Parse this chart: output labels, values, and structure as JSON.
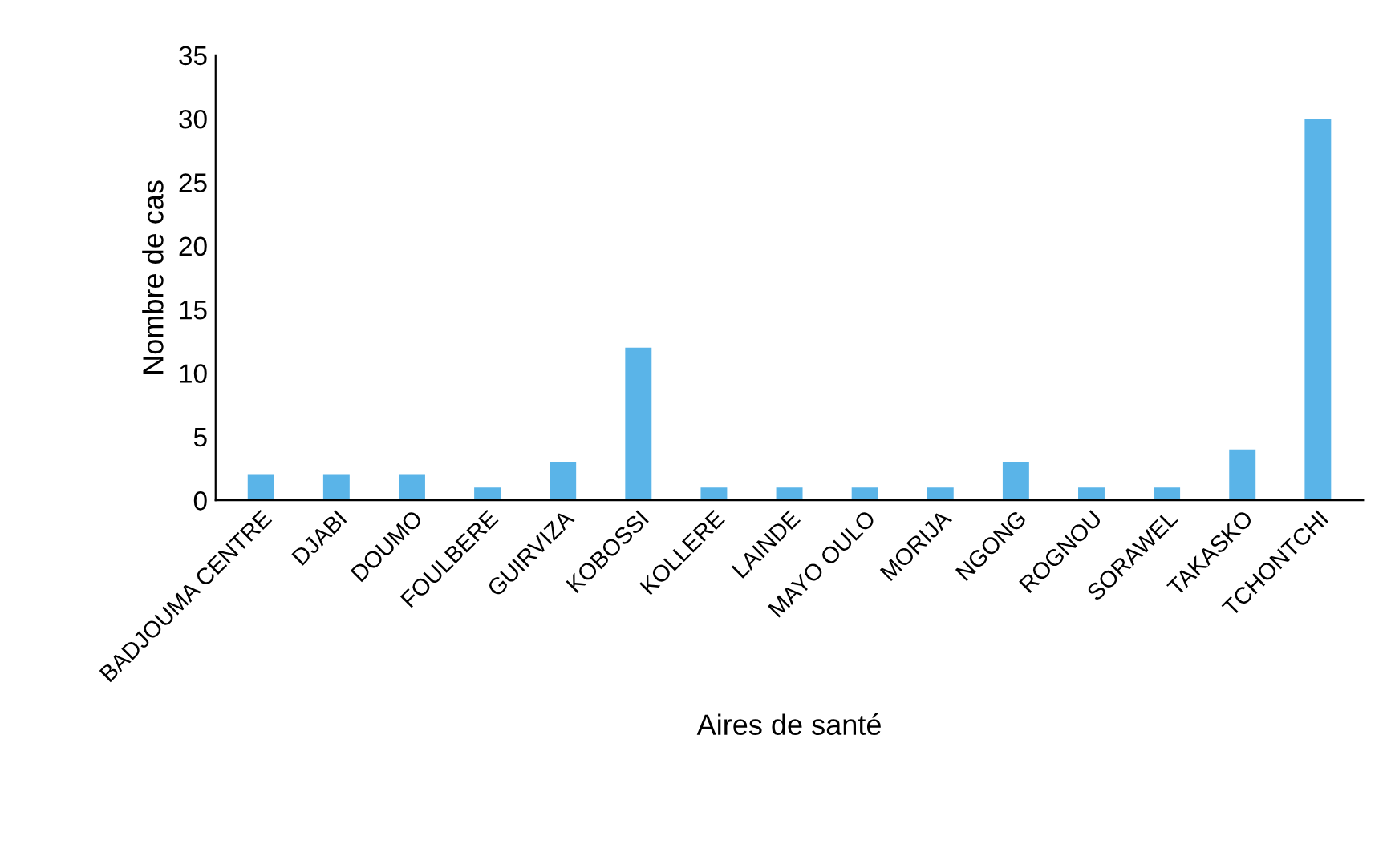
{
  "chart_data": {
    "type": "bar",
    "xlabel": "Aires de santé",
    "ylabel": "Nombre de cas",
    "categories": [
      "BADJOUMA CENTRE",
      "DJABI",
      "DOUMO",
      "FOULBERE",
      "GUIRVIZA",
      "KOBOSSI",
      "KOLLERE",
      "LAINDE",
      "MAYO OULO",
      "MORIJA",
      "NGONG",
      "ROGNOU",
      "SORAWEL",
      "TAKASKO",
      "TCHONTCHI"
    ],
    "values": [
      2,
      2,
      2,
      1,
      3,
      12,
      1,
      1,
      1,
      1,
      3,
      1,
      1,
      4,
      30
    ],
    "color": "#5ab4e8",
    "ylim": [
      0,
      35
    ],
    "yticks": [
      0,
      5,
      10,
      15,
      20,
      25,
      30,
      35
    ],
    "grid": false,
    "legend": false
  }
}
